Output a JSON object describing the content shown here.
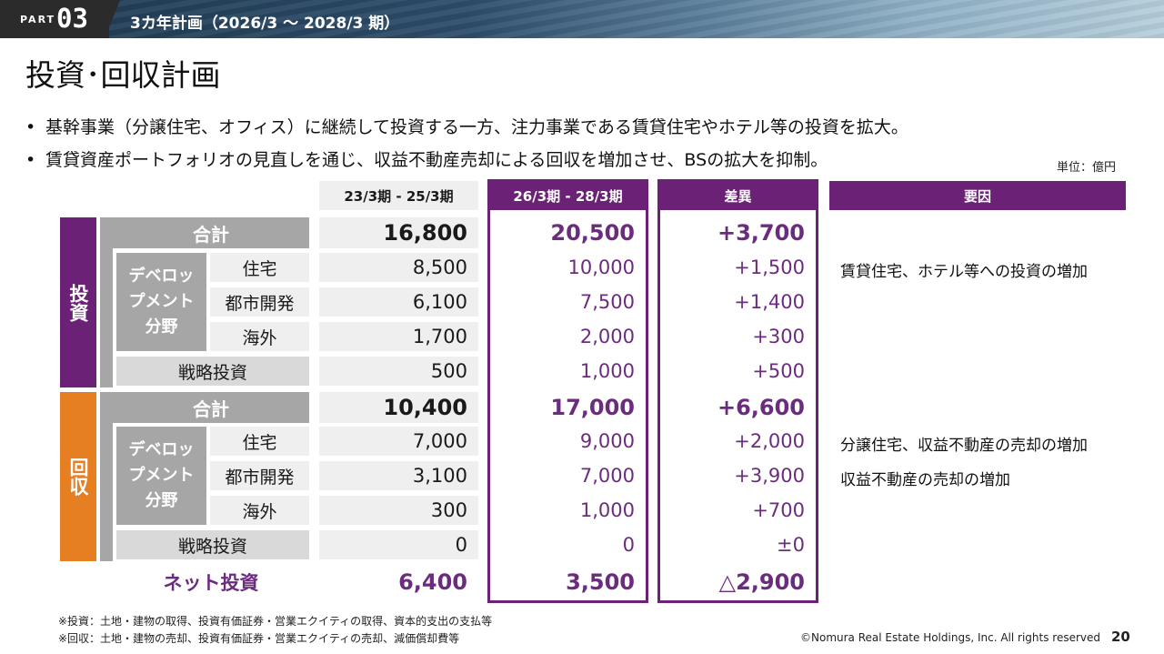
{
  "header": {
    "part_label": "PART",
    "part_number": "03",
    "section_title": "3カ年計画（2026/3 ～ 2028/3 期）"
  },
  "page_title": "投資･回収計画",
  "bullets": [
    "基幹事業（分譲住宅、オフィス）に継続して投資する一方、注力事業である賃貸住宅やホテル等の投資を拡大。",
    "賃貸資産ポートフォリオの見直しを通じ、収益不動産売却による回収を増加させ、BSの拡大を抑制。"
  ],
  "bullet_symbol": "•",
  "unit": "単位：億円",
  "columns": {
    "prev": "23/3期 - 25/3期",
    "plan": "26/3期 - 28/3期",
    "diff": "差異",
    "reason": "要因"
  },
  "colors": {
    "purple": "#6b2175",
    "orange": "#e67e22",
    "gray": "#a6a6a6"
  },
  "investment": {
    "label": "投資",
    "total_label": "合計",
    "total": {
      "prev": "16,800",
      "plan": "20,500",
      "diff": "+3,700"
    },
    "dev_label": "デベロップメント分野",
    "rows": [
      {
        "label": "住宅",
        "prev": "8,500",
        "plan": "10,000",
        "diff": "+1,500",
        "reason": "賃貸住宅、ホテル等への投資の増加"
      },
      {
        "label": "都市開発",
        "prev": "6,100",
        "plan": "7,500",
        "diff": "+1,400",
        "reason": ""
      },
      {
        "label": "海外",
        "prev": "1,700",
        "plan": "2,000",
        "diff": "+300",
        "reason": ""
      }
    ],
    "strategic": {
      "label": "戦略投資",
      "prev": "500",
      "plan": "1,000",
      "diff": "+500"
    }
  },
  "recovery": {
    "label": "回収",
    "total_label": "合計",
    "total": {
      "prev": "10,400",
      "plan": "17,000",
      "diff": "+6,600"
    },
    "dev_label": "デベロップメント分野",
    "rows": [
      {
        "label": "住宅",
        "prev": "7,000",
        "plan": "9,000",
        "diff": "+2,000",
        "reason": "分譲住宅、収益不動産の売却の増加"
      },
      {
        "label": "都市開発",
        "prev": "3,100",
        "plan": "7,000",
        "diff": "+3,900",
        "reason": "収益不動産の売却の増加"
      },
      {
        "label": "海外",
        "prev": "300",
        "plan": "1,000",
        "diff": "+700",
        "reason": ""
      }
    ],
    "strategic": {
      "label": "戦略投資",
      "prev": "0",
      "plan": "0",
      "diff": "±0"
    }
  },
  "net": {
    "label": "ネット投資",
    "prev": "6,400",
    "plan": "3,500",
    "diff": "△2,900"
  },
  "footnotes": [
    "※投資：土地・建物の取得、投資有価証券・営業エクイティの取得、資本的支出の支払等",
    "※回収：土地・建物の売却、投資有価証券・営業エクイティの売却、減価償却費等"
  ],
  "copyright": "©Nomura Real Estate Holdings, Inc. All rights reserved",
  "page_number": "20"
}
